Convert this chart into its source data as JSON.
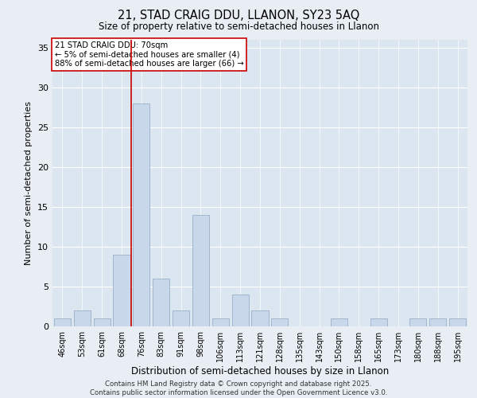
{
  "title": "21, STAD CRAIG DDU, LLANON, SY23 5AQ",
  "subtitle": "Size of property relative to semi-detached houses in Llanon",
  "xlabel": "Distribution of semi-detached houses by size in Llanon",
  "ylabel": "Number of semi-detached properties",
  "categories": [
    "46sqm",
    "53sqm",
    "61sqm",
    "68sqm",
    "76sqm",
    "83sqm",
    "91sqm",
    "98sqm",
    "106sqm",
    "113sqm",
    "121sqm",
    "128sqm",
    "135sqm",
    "143sqm",
    "150sqm",
    "158sqm",
    "165sqm",
    "173sqm",
    "180sqm",
    "188sqm",
    "195sqm"
  ],
  "values": [
    1,
    2,
    1,
    9,
    28,
    6,
    2,
    14,
    1,
    4,
    2,
    1,
    0,
    0,
    1,
    0,
    1,
    0,
    1,
    1,
    1
  ],
  "bar_color": "#c8d8ea",
  "bar_edge_color": "#9ab0c8",
  "vline_x": 3.5,
  "vline_color": "#cc0000",
  "annotation_title": "21 STAD CRAIG DDU: 70sqm",
  "annotation_line1": "← 5% of semi-detached houses are smaller (4)",
  "annotation_line2": "88% of semi-detached houses are larger (66) →",
  "ylim": [
    0,
    36
  ],
  "yticks": [
    0,
    5,
    10,
    15,
    20,
    25,
    30,
    35
  ],
  "bg_color": "#e8eef4",
  "plot_bg_color": "#dce6f0",
  "footer1": "Contains HM Land Registry data © Crown copyright and database right 2025.",
  "footer2": "Contains public sector information licensed under the Open Government Licence v3.0."
}
